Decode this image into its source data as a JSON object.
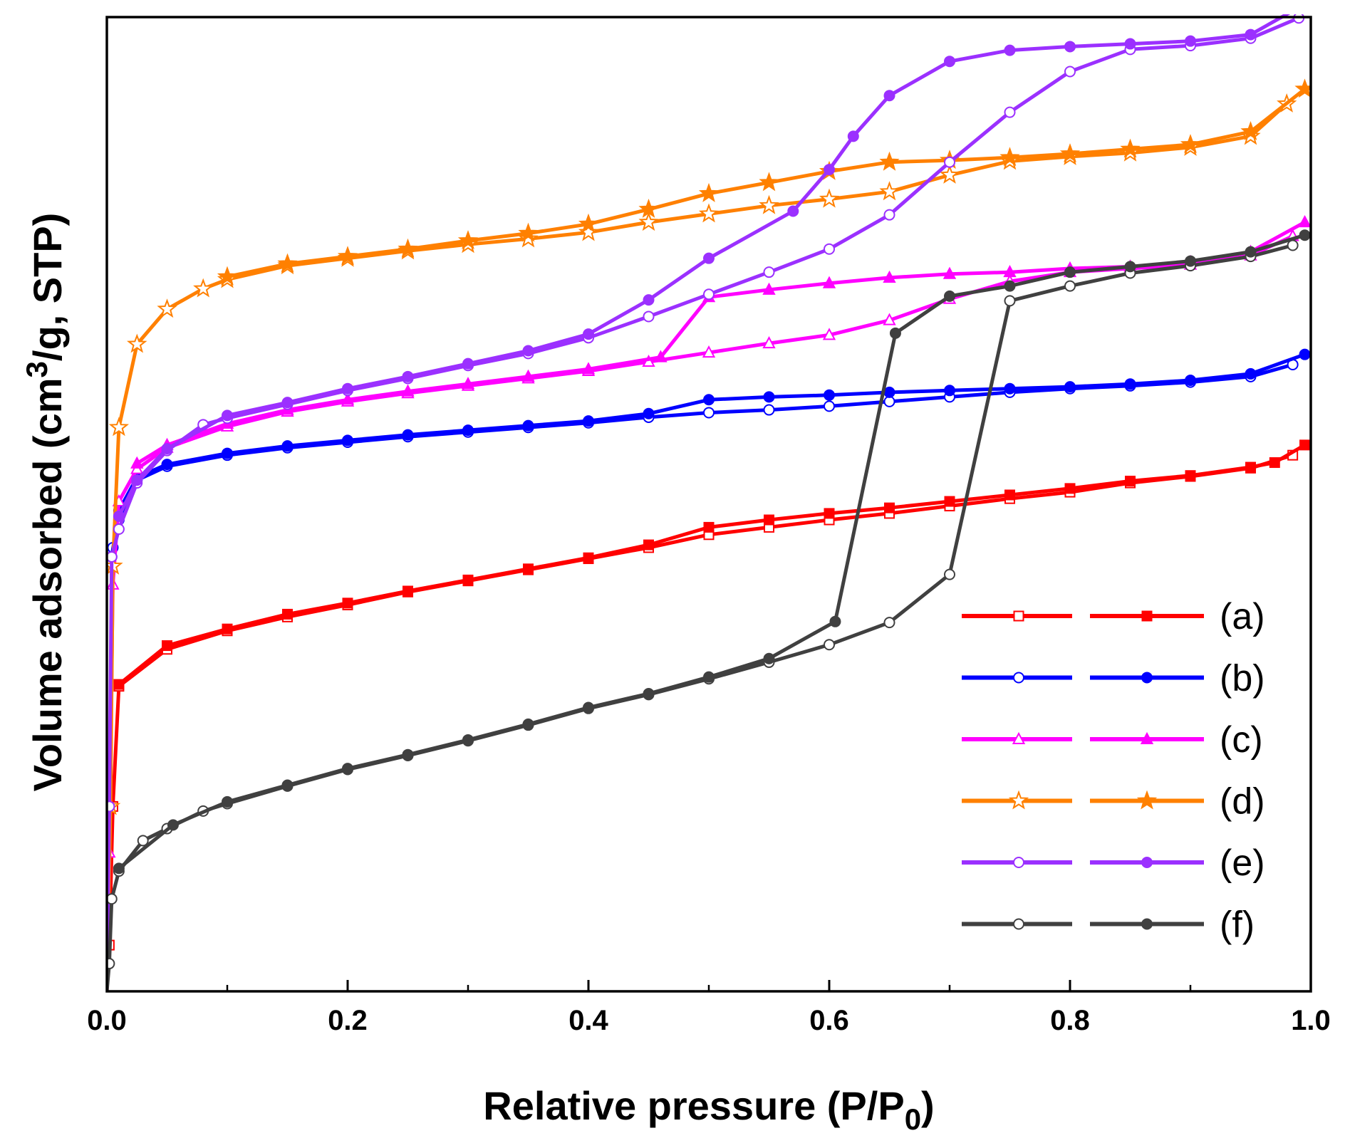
{
  "chart_data": {
    "type": "line",
    "xlabel": "Relative pressure (P/P",
    "xlabel_sub": "0",
    "xlabel_end": ")",
    "ylabel_pre": "Volume adsorbed (cm",
    "ylabel_sup": "3",
    "ylabel_post": "/g, STP)",
    "xlim": [
      0.0,
      1.0
    ],
    "ylim": [
      0,
      100
    ],
    "x_ticks": [
      0.0,
      0.2,
      0.4,
      0.6,
      0.8,
      1.0
    ],
    "x_tick_labels": [
      "0.0",
      "0.2",
      "0.4",
      "0.6",
      "0.8",
      "1.0"
    ],
    "y_ticks_shown": false,
    "legend_position": "lower-right",
    "series": [
      {
        "name": "(a)",
        "color": "#ff0000",
        "marker": "square",
        "adsorption": [
          [
            0.0,
            0
          ],
          [
            0.002,
            5
          ],
          [
            0.005,
            20
          ],
          [
            0.01,
            33
          ],
          [
            0.05,
            37
          ],
          [
            0.1,
            39
          ],
          [
            0.15,
            40.5
          ],
          [
            0.2,
            41.8
          ],
          [
            0.25,
            43.2
          ],
          [
            0.3,
            44.4
          ],
          [
            0.35,
            45.6
          ],
          [
            0.4,
            46.8
          ],
          [
            0.45,
            48
          ],
          [
            0.5,
            49.4
          ],
          [
            0.55,
            50.2
          ],
          [
            0.6,
            51
          ],
          [
            0.65,
            51.7
          ],
          [
            0.7,
            52.5
          ],
          [
            0.75,
            53.3
          ],
          [
            0.8,
            54
          ],
          [
            0.85,
            55
          ],
          [
            0.9,
            55.7
          ],
          [
            0.95,
            56.6
          ],
          [
            0.985,
            58
          ]
        ],
        "desorption": [
          [
            0.995,
            59.1
          ],
          [
            0.97,
            57.2
          ],
          [
            0.95,
            56.7
          ],
          [
            0.9,
            55.8
          ],
          [
            0.85,
            55.2
          ],
          [
            0.8,
            54.4
          ],
          [
            0.75,
            53.7
          ],
          [
            0.7,
            53
          ],
          [
            0.65,
            52.3
          ],
          [
            0.6,
            51.7
          ],
          [
            0.55,
            51
          ],
          [
            0.5,
            50.2
          ],
          [
            0.45,
            48.3
          ],
          [
            0.4,
            46.9
          ],
          [
            0.35,
            45.7
          ],
          [
            0.3,
            44.5
          ],
          [
            0.25,
            43.3
          ],
          [
            0.2,
            42
          ],
          [
            0.15,
            40.8
          ],
          [
            0.1,
            39.2
          ],
          [
            0.05,
            37.4
          ],
          [
            0.01,
            33.2
          ]
        ]
      },
      {
        "name": "(b)",
        "color": "#0000ff",
        "marker": "circle",
        "adsorption": [
          [
            0.0,
            0
          ],
          [
            0.002,
            20
          ],
          [
            0.005,
            48
          ],
          [
            0.01,
            51
          ],
          [
            0.025,
            55.3
          ],
          [
            0.05,
            56.8
          ],
          [
            0.1,
            58
          ],
          [
            0.15,
            58.8
          ],
          [
            0.2,
            59.4
          ],
          [
            0.25,
            60
          ],
          [
            0.3,
            60.5
          ],
          [
            0.35,
            61
          ],
          [
            0.4,
            61.5
          ],
          [
            0.45,
            62.1
          ],
          [
            0.5,
            62.6
          ],
          [
            0.55,
            62.9
          ],
          [
            0.6,
            63.3
          ],
          [
            0.65,
            63.8
          ],
          [
            0.7,
            64.3
          ],
          [
            0.75,
            64.8
          ],
          [
            0.8,
            65.2
          ],
          [
            0.85,
            65.5
          ],
          [
            0.9,
            65.9
          ],
          [
            0.95,
            66.5
          ],
          [
            0.985,
            67.8
          ]
        ],
        "desorption": [
          [
            0.995,
            68.9
          ],
          [
            0.95,
            66.8
          ],
          [
            0.9,
            66.1
          ],
          [
            0.85,
            65.7
          ],
          [
            0.8,
            65.4
          ],
          [
            0.75,
            65.2
          ],
          [
            0.7,
            65
          ],
          [
            0.65,
            64.8
          ],
          [
            0.6,
            64.5
          ],
          [
            0.55,
            64.3
          ],
          [
            0.5,
            64
          ],
          [
            0.45,
            62.5
          ],
          [
            0.4,
            61.7
          ],
          [
            0.35,
            61.2
          ],
          [
            0.3,
            60.7
          ],
          [
            0.25,
            60.2
          ],
          [
            0.2,
            59.6
          ],
          [
            0.15,
            59
          ],
          [
            0.1,
            58.2
          ],
          [
            0.05,
            57
          ],
          [
            0.025,
            55.6
          ],
          [
            0.01,
            52
          ],
          [
            0.004,
            47
          ]
        ]
      },
      {
        "name": "(c)",
        "color": "#ff00ff",
        "marker": "triangle",
        "adsorption": [
          [
            0.0,
            0
          ],
          [
            0.002,
            15
          ],
          [
            0.005,
            44
          ],
          [
            0.01,
            53
          ],
          [
            0.025,
            56.5
          ],
          [
            0.05,
            58.8
          ],
          [
            0.1,
            61.1
          ],
          [
            0.15,
            62.7
          ],
          [
            0.2,
            63.8
          ],
          [
            0.25,
            64.7
          ],
          [
            0.3,
            65.5
          ],
          [
            0.35,
            66.3
          ],
          [
            0.4,
            67.1
          ],
          [
            0.45,
            68.1
          ],
          [
            0.5,
            69.1
          ],
          [
            0.55,
            70.1
          ],
          [
            0.6,
            71
          ],
          [
            0.65,
            72.6
          ],
          [
            0.7,
            74.9
          ],
          [
            0.75,
            76.8
          ],
          [
            0.8,
            77.8
          ],
          [
            0.85,
            78.2
          ],
          [
            0.9,
            78.6
          ],
          [
            0.95,
            79.6
          ],
          [
            0.985,
            81.7
          ]
        ],
        "desorption": [
          [
            0.995,
            83.2
          ],
          [
            0.95,
            80
          ],
          [
            0.9,
            78.9
          ],
          [
            0.85,
            78.4
          ],
          [
            0.8,
            78.2
          ],
          [
            0.75,
            77.8
          ],
          [
            0.7,
            77.6
          ],
          [
            0.65,
            77.2
          ],
          [
            0.6,
            76.6
          ],
          [
            0.55,
            75.9
          ],
          [
            0.5,
            75.1
          ],
          [
            0.46,
            68.6
          ],
          [
            0.4,
            67.3
          ],
          [
            0.35,
            66.5
          ],
          [
            0.3,
            65.7
          ],
          [
            0.25,
            64.9
          ],
          [
            0.2,
            64
          ],
          [
            0.15,
            62.9
          ],
          [
            0.1,
            61.4
          ],
          [
            0.05,
            59.1
          ],
          [
            0.025,
            57.1
          ]
        ]
      },
      {
        "name": "(d)",
        "color": "#ff8000",
        "marker": "star",
        "adsorption": [
          [
            0.0,
            0
          ],
          [
            0.003,
            20
          ],
          [
            0.005,
            46
          ],
          [
            0.01,
            61
          ],
          [
            0.025,
            70
          ],
          [
            0.05,
            73.8
          ],
          [
            0.08,
            76
          ],
          [
            0.1,
            77
          ],
          [
            0.15,
            78.5
          ],
          [
            0.2,
            79.3
          ],
          [
            0.25,
            80.1
          ],
          [
            0.3,
            80.8
          ],
          [
            0.35,
            81.4
          ],
          [
            0.4,
            82.1
          ],
          [
            0.45,
            83.2
          ],
          [
            0.5,
            84.1
          ],
          [
            0.55,
            85
          ],
          [
            0.6,
            85.7
          ],
          [
            0.65,
            86.5
          ],
          [
            0.7,
            88.3
          ],
          [
            0.75,
            89.8
          ],
          [
            0.8,
            90.3
          ],
          [
            0.85,
            90.7
          ],
          [
            0.9,
            91.3
          ],
          [
            0.95,
            92.5
          ],
          [
            0.98,
            96
          ]
        ],
        "desorption": [
          [
            0.995,
            97.6
          ],
          [
            0.95,
            93
          ],
          [
            0.9,
            91.6
          ],
          [
            0.85,
            91.1
          ],
          [
            0.8,
            90.6
          ],
          [
            0.75,
            90.2
          ],
          [
            0.7,
            89.9
          ],
          [
            0.65,
            89.7
          ],
          [
            0.6,
            88.7
          ],
          [
            0.55,
            87.5
          ],
          [
            0.5,
            86.3
          ],
          [
            0.45,
            84.6
          ],
          [
            0.4,
            83
          ],
          [
            0.35,
            82
          ],
          [
            0.3,
            81.2
          ],
          [
            0.25,
            80.3
          ],
          [
            0.2,
            79.5
          ],
          [
            0.15,
            78.7
          ],
          [
            0.1,
            77.3
          ]
        ]
      },
      {
        "name": "(e)",
        "color": "#9b30ff",
        "marker": "circle",
        "adsorption": [
          [
            0.0,
            0
          ],
          [
            0.002,
            20
          ],
          [
            0.004,
            47
          ],
          [
            0.01,
            50
          ],
          [
            0.025,
            55
          ],
          [
            0.05,
            58.5
          ],
          [
            0.08,
            61.3
          ],
          [
            0.1,
            62
          ],
          [
            0.15,
            63.5
          ],
          [
            0.2,
            65
          ],
          [
            0.25,
            66.3
          ],
          [
            0.3,
            67.7
          ],
          [
            0.35,
            69
          ],
          [
            0.4,
            70.7
          ],
          [
            0.45,
            73
          ],
          [
            0.5,
            75.4
          ],
          [
            0.55,
            77.8
          ],
          [
            0.6,
            80.3
          ],
          [
            0.65,
            84
          ],
          [
            0.7,
            89.7
          ],
          [
            0.75,
            95.1
          ],
          [
            0.8,
            99.5
          ],
          [
            0.85,
            101.9
          ],
          [
            0.9,
            102.3
          ],
          [
            0.95,
            103.1
          ],
          [
            0.99,
            105.3
          ]
        ],
        "desorption": [
          [
            0.995,
            106.8
          ],
          [
            0.95,
            103.5
          ],
          [
            0.9,
            102.8
          ],
          [
            0.85,
            102.5
          ],
          [
            0.8,
            102.2
          ],
          [
            0.75,
            101.8
          ],
          [
            0.7,
            100.6
          ],
          [
            0.65,
            96.9
          ],
          [
            0.62,
            92.5
          ],
          [
            0.6,
            88.9
          ],
          [
            0.57,
            84.4
          ],
          [
            0.5,
            79.3
          ],
          [
            0.45,
            74.8
          ],
          [
            0.4,
            71.1
          ],
          [
            0.35,
            69.3
          ],
          [
            0.3,
            67.9
          ],
          [
            0.25,
            66.5
          ],
          [
            0.2,
            65.2
          ],
          [
            0.15,
            63.7
          ],
          [
            0.1,
            62.3
          ],
          [
            0.05,
            58.7
          ],
          [
            0.025,
            55.3
          ],
          [
            0.01,
            51.4
          ]
        ]
      },
      {
        "name": "(f)",
        "color": "#404040",
        "marker": "circle",
        "adsorption": [
          [
            0.0,
            0
          ],
          [
            0.002,
            3
          ],
          [
            0.004,
            10
          ],
          [
            0.01,
            13
          ],
          [
            0.03,
            16.3
          ],
          [
            0.05,
            17.6
          ],
          [
            0.08,
            19.5
          ],
          [
            0.1,
            20.3
          ],
          [
            0.15,
            22.2
          ],
          [
            0.2,
            24
          ],
          [
            0.25,
            25.5
          ],
          [
            0.3,
            27.1
          ],
          [
            0.35,
            28.8
          ],
          [
            0.4,
            30.6
          ],
          [
            0.45,
            32.1
          ],
          [
            0.5,
            33.8
          ],
          [
            0.55,
            35.6
          ],
          [
            0.6,
            37.5
          ],
          [
            0.65,
            39.9
          ],
          [
            0.7,
            45.1
          ],
          [
            0.75,
            74.7
          ],
          [
            0.8,
            76.3
          ],
          [
            0.85,
            77.7
          ],
          [
            0.9,
            78.5
          ],
          [
            0.95,
            79.5
          ],
          [
            0.985,
            80.7
          ]
        ],
        "desorption": [
          [
            0.995,
            81.8
          ],
          [
            0.95,
            80
          ],
          [
            0.9,
            79
          ],
          [
            0.85,
            78.4
          ],
          [
            0.8,
            77.8
          ],
          [
            0.75,
            76.3
          ],
          [
            0.7,
            75.2
          ],
          [
            0.655,
            71.2
          ],
          [
            0.605,
            40
          ],
          [
            0.55,
            36
          ],
          [
            0.5,
            34
          ],
          [
            0.45,
            32.2
          ],
          [
            0.4,
            30.7
          ],
          [
            0.35,
            28.9
          ],
          [
            0.3,
            27.2
          ],
          [
            0.25,
            25.6
          ],
          [
            0.2,
            24.1
          ],
          [
            0.15,
            22.3
          ],
          [
            0.1,
            20.5
          ],
          [
            0.055,
            18
          ],
          [
            0.01,
            13.3
          ]
        ]
      }
    ]
  }
}
